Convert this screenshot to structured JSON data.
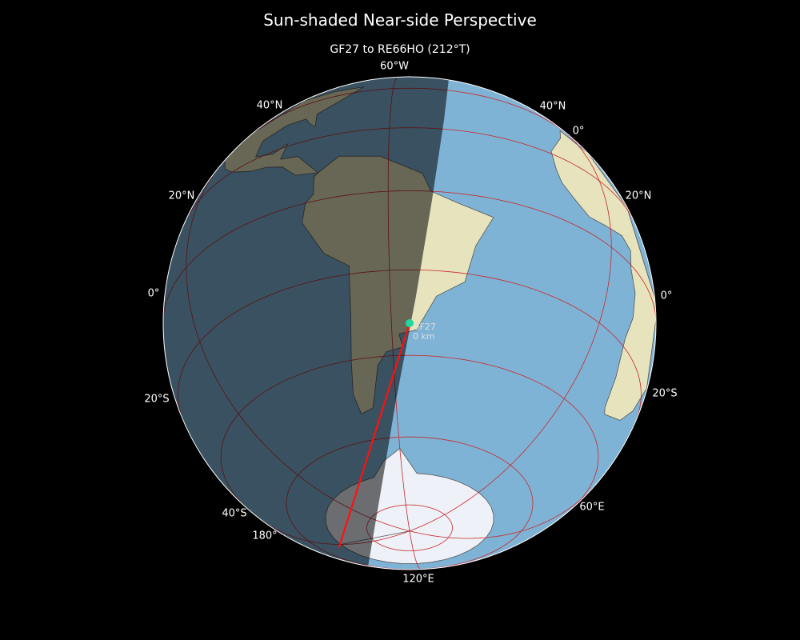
{
  "title": "Sun-shaded Near-side Perspective",
  "subtitle": "GF27 to RE66HO (212°T)",
  "projection": {
    "type": "near-side perspective",
    "center_lat": -32.5,
    "center_lon": -55
  },
  "colors": {
    "background": "#000000",
    "ocean": "#7fb3d6",
    "land": "#e6e3bd",
    "ice": "#eef2f8",
    "night": "#000000",
    "graticule": "#c8282a",
    "path": "#ff1010",
    "station": "#20d8a0"
  },
  "station": {
    "name": "GF27",
    "distance": "0 km",
    "lat": -32.5,
    "lon": -55
  },
  "path_end": {
    "lat": -68,
    "lon": 175
  },
  "labels": {
    "lon_60w": "60°W",
    "lat_40n_left": "40°N",
    "lat_40n_right": "40°N",
    "lon_0": "0°",
    "lat_20n_left": "20°N",
    "lat_20n_right": "20°N",
    "lat_0_left": "0°",
    "lat_0_right": "0°",
    "lat_20s_left": "20°S",
    "lat_20s_right": "20°S",
    "lat_40s": "40°S",
    "lon_180": "180°",
    "lon_60e": "60°E",
    "lon_120e": "120°E"
  }
}
